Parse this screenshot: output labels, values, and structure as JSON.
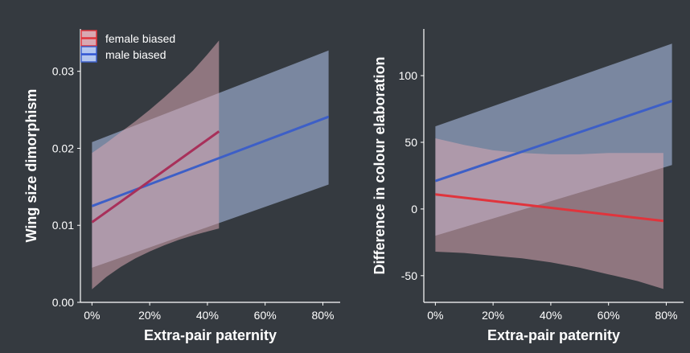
{
  "chart_data": [
    {
      "type": "line",
      "xlabel": "Extra-pair paternity",
      "ylabel": "Wing size dimorphism",
      "xlim": [
        -0.04,
        0.86
      ],
      "ylim": [
        0.0,
        0.0355
      ],
      "xticks": [
        0,
        0.2,
        0.4,
        0.6,
        0.8
      ],
      "xtick_labels": [
        "0%",
        "20%",
        "40%",
        "60%",
        "80%"
      ],
      "yticks": [
        0.0,
        0.01,
        0.02,
        0.03
      ],
      "ytick_labels": [
        "0.00",
        "0.01",
        "0.02",
        "0.03"
      ],
      "grid": false,
      "legend": {
        "placement": "top-left",
        "entries": [
          "female biased",
          "male biased"
        ]
      },
      "series": [
        {
          "name": "male biased",
          "color": "#3d5fc7",
          "band_color": "#b3c6ef",
          "x": [
            0,
            0.82
          ],
          "y": [
            0.0125,
            0.0241
          ],
          "band": {
            "x": [
              0,
              0.82
            ],
            "upper": [
              0.0208,
              0.0327
            ],
            "lower": [
              0.0045,
              0.0153
            ]
          }
        },
        {
          "name": "female biased",
          "color": "#a8305a",
          "band_color": "#d9a8b2",
          "x": [
            0,
            0.44
          ],
          "y": [
            0.0104,
            0.0222
          ],
          "band": {
            "x": [
              0,
              0.05,
              0.1,
              0.15,
              0.2,
              0.25,
              0.3,
              0.35,
              0.4,
              0.44
            ],
            "upper": [
              0.0194,
              0.0207,
              0.0221,
              0.0235,
              0.025,
              0.0266,
              0.0283,
              0.0301,
              0.0322,
              0.034
            ],
            "lower": [
              0.0017,
              0.0033,
              0.0046,
              0.0057,
              0.0066,
              0.0074,
              0.0081,
              0.0087,
              0.0092,
              0.0096
            ]
          }
        }
      ]
    },
    {
      "type": "line",
      "xlabel": "Extra-pair paternity",
      "ylabel": "Difference in colour elaboration",
      "xlim": [
        -0.04,
        0.86
      ],
      "ylim": [
        -70,
        135
      ],
      "xticks": [
        0,
        0.2,
        0.4,
        0.6,
        0.8
      ],
      "xtick_labels": [
        "0%",
        "20%",
        "40%",
        "60%",
        "80%"
      ],
      "yticks": [
        -50,
        0,
        50,
        100
      ],
      "ytick_labels": [
        "-50",
        "0",
        "50",
        "100"
      ],
      "grid": false,
      "series": [
        {
          "name": "male biased",
          "color": "#3d5fc7",
          "band_color": "#b3c6ef",
          "x": [
            0,
            0.82
          ],
          "y": [
            21,
            81
          ],
          "band": {
            "x": [
              0,
              0.82
            ],
            "upper": [
              62,
              124
            ],
            "lower": [
              -20,
              33
            ]
          }
        },
        {
          "name": "female biased",
          "color": "#e0343c",
          "band_color": "#d9a8b2",
          "x": [
            0,
            0.79
          ],
          "y": [
            11,
            -9
          ],
          "band": {
            "x": [
              0,
              0.1,
              0.2,
              0.3,
              0.4,
              0.5,
              0.6,
              0.7,
              0.79
            ],
            "upper": [
              53,
              48,
              44,
              42,
              41,
              41,
              42,
              42,
              42
            ],
            "lower": [
              -32,
              -33,
              -35,
              -37,
              -40,
              -44,
              -49,
              -54,
              -60
            ]
          }
        }
      ]
    }
  ]
}
